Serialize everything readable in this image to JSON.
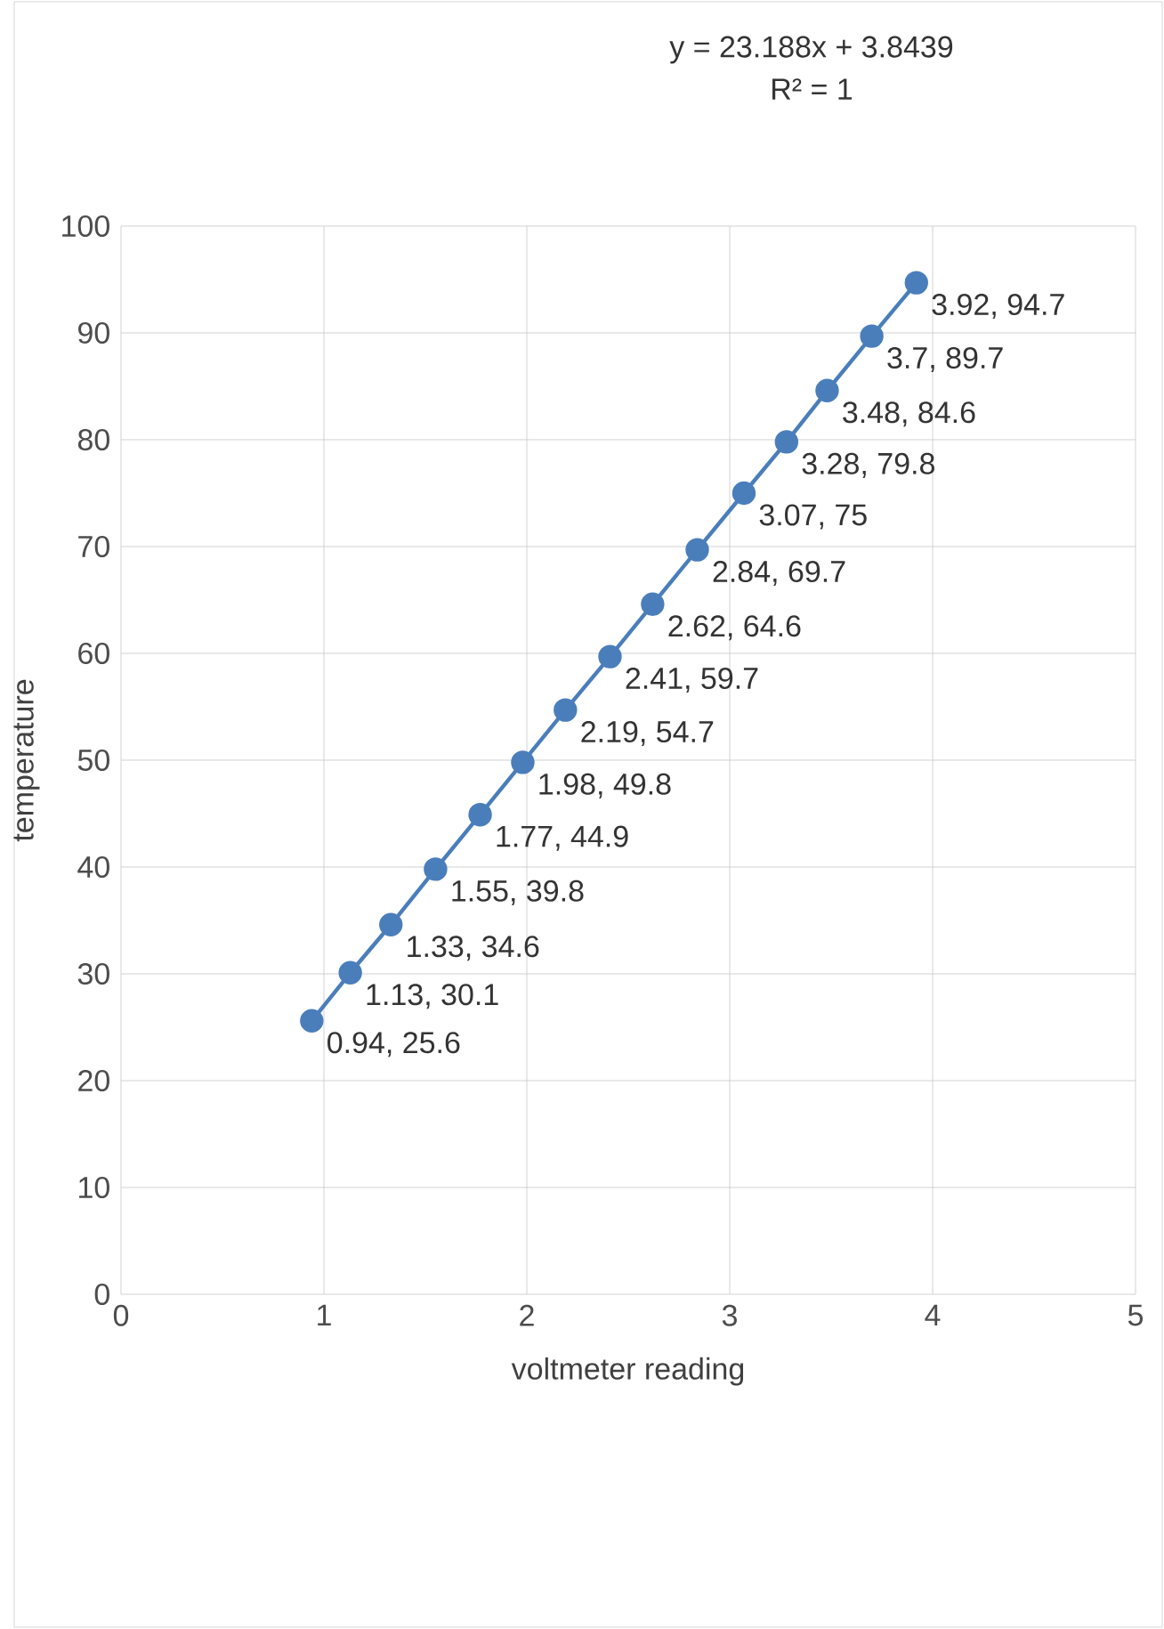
{
  "chart_data": {
    "type": "line",
    "xlabel": "voltmeter reading",
    "ylabel": "temperature",
    "annotations": [
      "y = 23.188x + 3.8439",
      "R² = 1"
    ],
    "xlim": [
      0,
      5
    ],
    "xticks": [
      0,
      1,
      2,
      3,
      4,
      5
    ],
    "ylim": [
      0,
      100
    ],
    "yticks": [
      0,
      10,
      20,
      30,
      40,
      50,
      60,
      70,
      80,
      90,
      100
    ],
    "grid": true,
    "marker": "circle",
    "line_style": "solid",
    "series": [
      {
        "color": "#4a7ebb",
        "x": [
          0.94,
          1.13,
          1.33,
          1.55,
          1.77,
          1.98,
          2.19,
          2.41,
          2.62,
          2.84,
          3.07,
          3.28,
          3.48,
          3.7,
          3.92
        ],
        "values": [
          25.6,
          30.1,
          34.6,
          39.8,
          44.9,
          49.8,
          54.7,
          59.7,
          64.6,
          69.7,
          75,
          79.8,
          84.6,
          89.7,
          94.7
        ],
        "value_labels": [
          "0.94, 25.6",
          "1.13, 30.1",
          "1.33, 34.6",
          "1.55, 39.8",
          "1.77, 44.9",
          "1.98, 49.8",
          "2.19, 54.7",
          "2.41, 59.7",
          "2.62, 64.6",
          "2.84, 69.7",
          "3.07, 75",
          "3.28, 79.8",
          "3.48, 84.6",
          "3.7, 89.7",
          "3.92, 94.7"
        ]
      }
    ]
  }
}
